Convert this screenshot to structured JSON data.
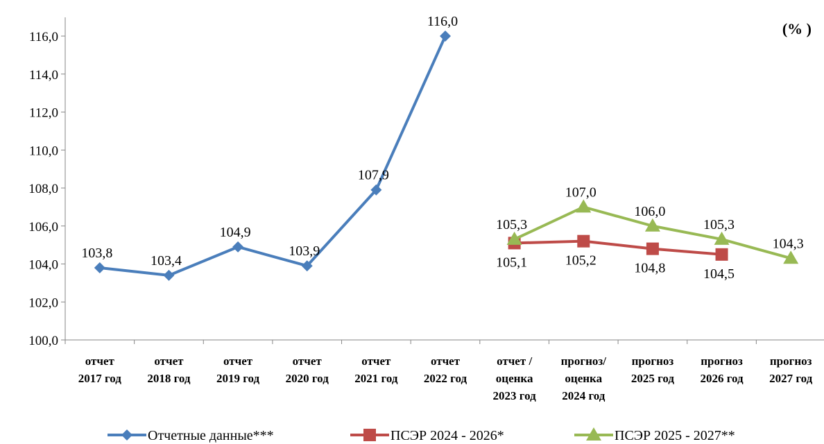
{
  "chart_data": {
    "type": "line",
    "unit_label": "(% )",
    "categories": [
      [
        "отчет",
        "2017 год"
      ],
      [
        "отчет",
        "2018 год"
      ],
      [
        "отчет",
        "2019 год"
      ],
      [
        "отчет",
        "2020 год"
      ],
      [
        "отчет",
        "2021 год"
      ],
      [
        "отчет",
        "2022 год"
      ],
      [
        "отчет /",
        "оценка",
        "2023 год"
      ],
      [
        "прогноз/",
        "оценка",
        "2024 год"
      ],
      [
        "прогноз",
        "2025 год"
      ],
      [
        "прогноз",
        "2026 год"
      ],
      [
        "прогноз",
        "2027 год"
      ]
    ],
    "y_ticks": [
      "100,0",
      "102,0",
      "104,0",
      "106,0",
      "108,0",
      "110,0",
      "112,0",
      "114,0",
      "116,0"
    ],
    "ylim": [
      100,
      116
    ],
    "grid": false,
    "legend_position": "bottom",
    "series": [
      {
        "name": "Отчетные данные***",
        "color": "#4a7ebb",
        "marker": "diamond",
        "label_position": "above",
        "values": [
          103.8,
          103.4,
          104.9,
          103.9,
          107.9,
          116.0,
          null,
          null,
          null,
          null,
          null
        ],
        "labels": [
          "103,8",
          "103,4",
          "104,9",
          "103,9",
          "107,9",
          "116,0",
          null,
          null,
          null,
          null,
          null
        ]
      },
      {
        "name": "ПСЭР 2024 - 2026*",
        "color": "#be4b48",
        "marker": "square",
        "label_position": "below",
        "values": [
          null,
          null,
          null,
          null,
          null,
          null,
          105.1,
          105.2,
          104.8,
          104.5,
          null
        ],
        "labels": [
          null,
          null,
          null,
          null,
          null,
          null,
          "105,1",
          "105,2",
          "104,8",
          "104,5",
          null
        ]
      },
      {
        "name": "ПСЭР 2025 - 2027**",
        "color": "#98b954",
        "marker": "triangle",
        "label_position": "above",
        "values": [
          null,
          null,
          null,
          null,
          null,
          null,
          105.3,
          107.0,
          106.0,
          105.3,
          104.3
        ],
        "labels": [
          null,
          null,
          null,
          null,
          null,
          null,
          "105,3",
          "107,0",
          "106,0",
          "105,3",
          "104,3"
        ]
      }
    ]
  }
}
